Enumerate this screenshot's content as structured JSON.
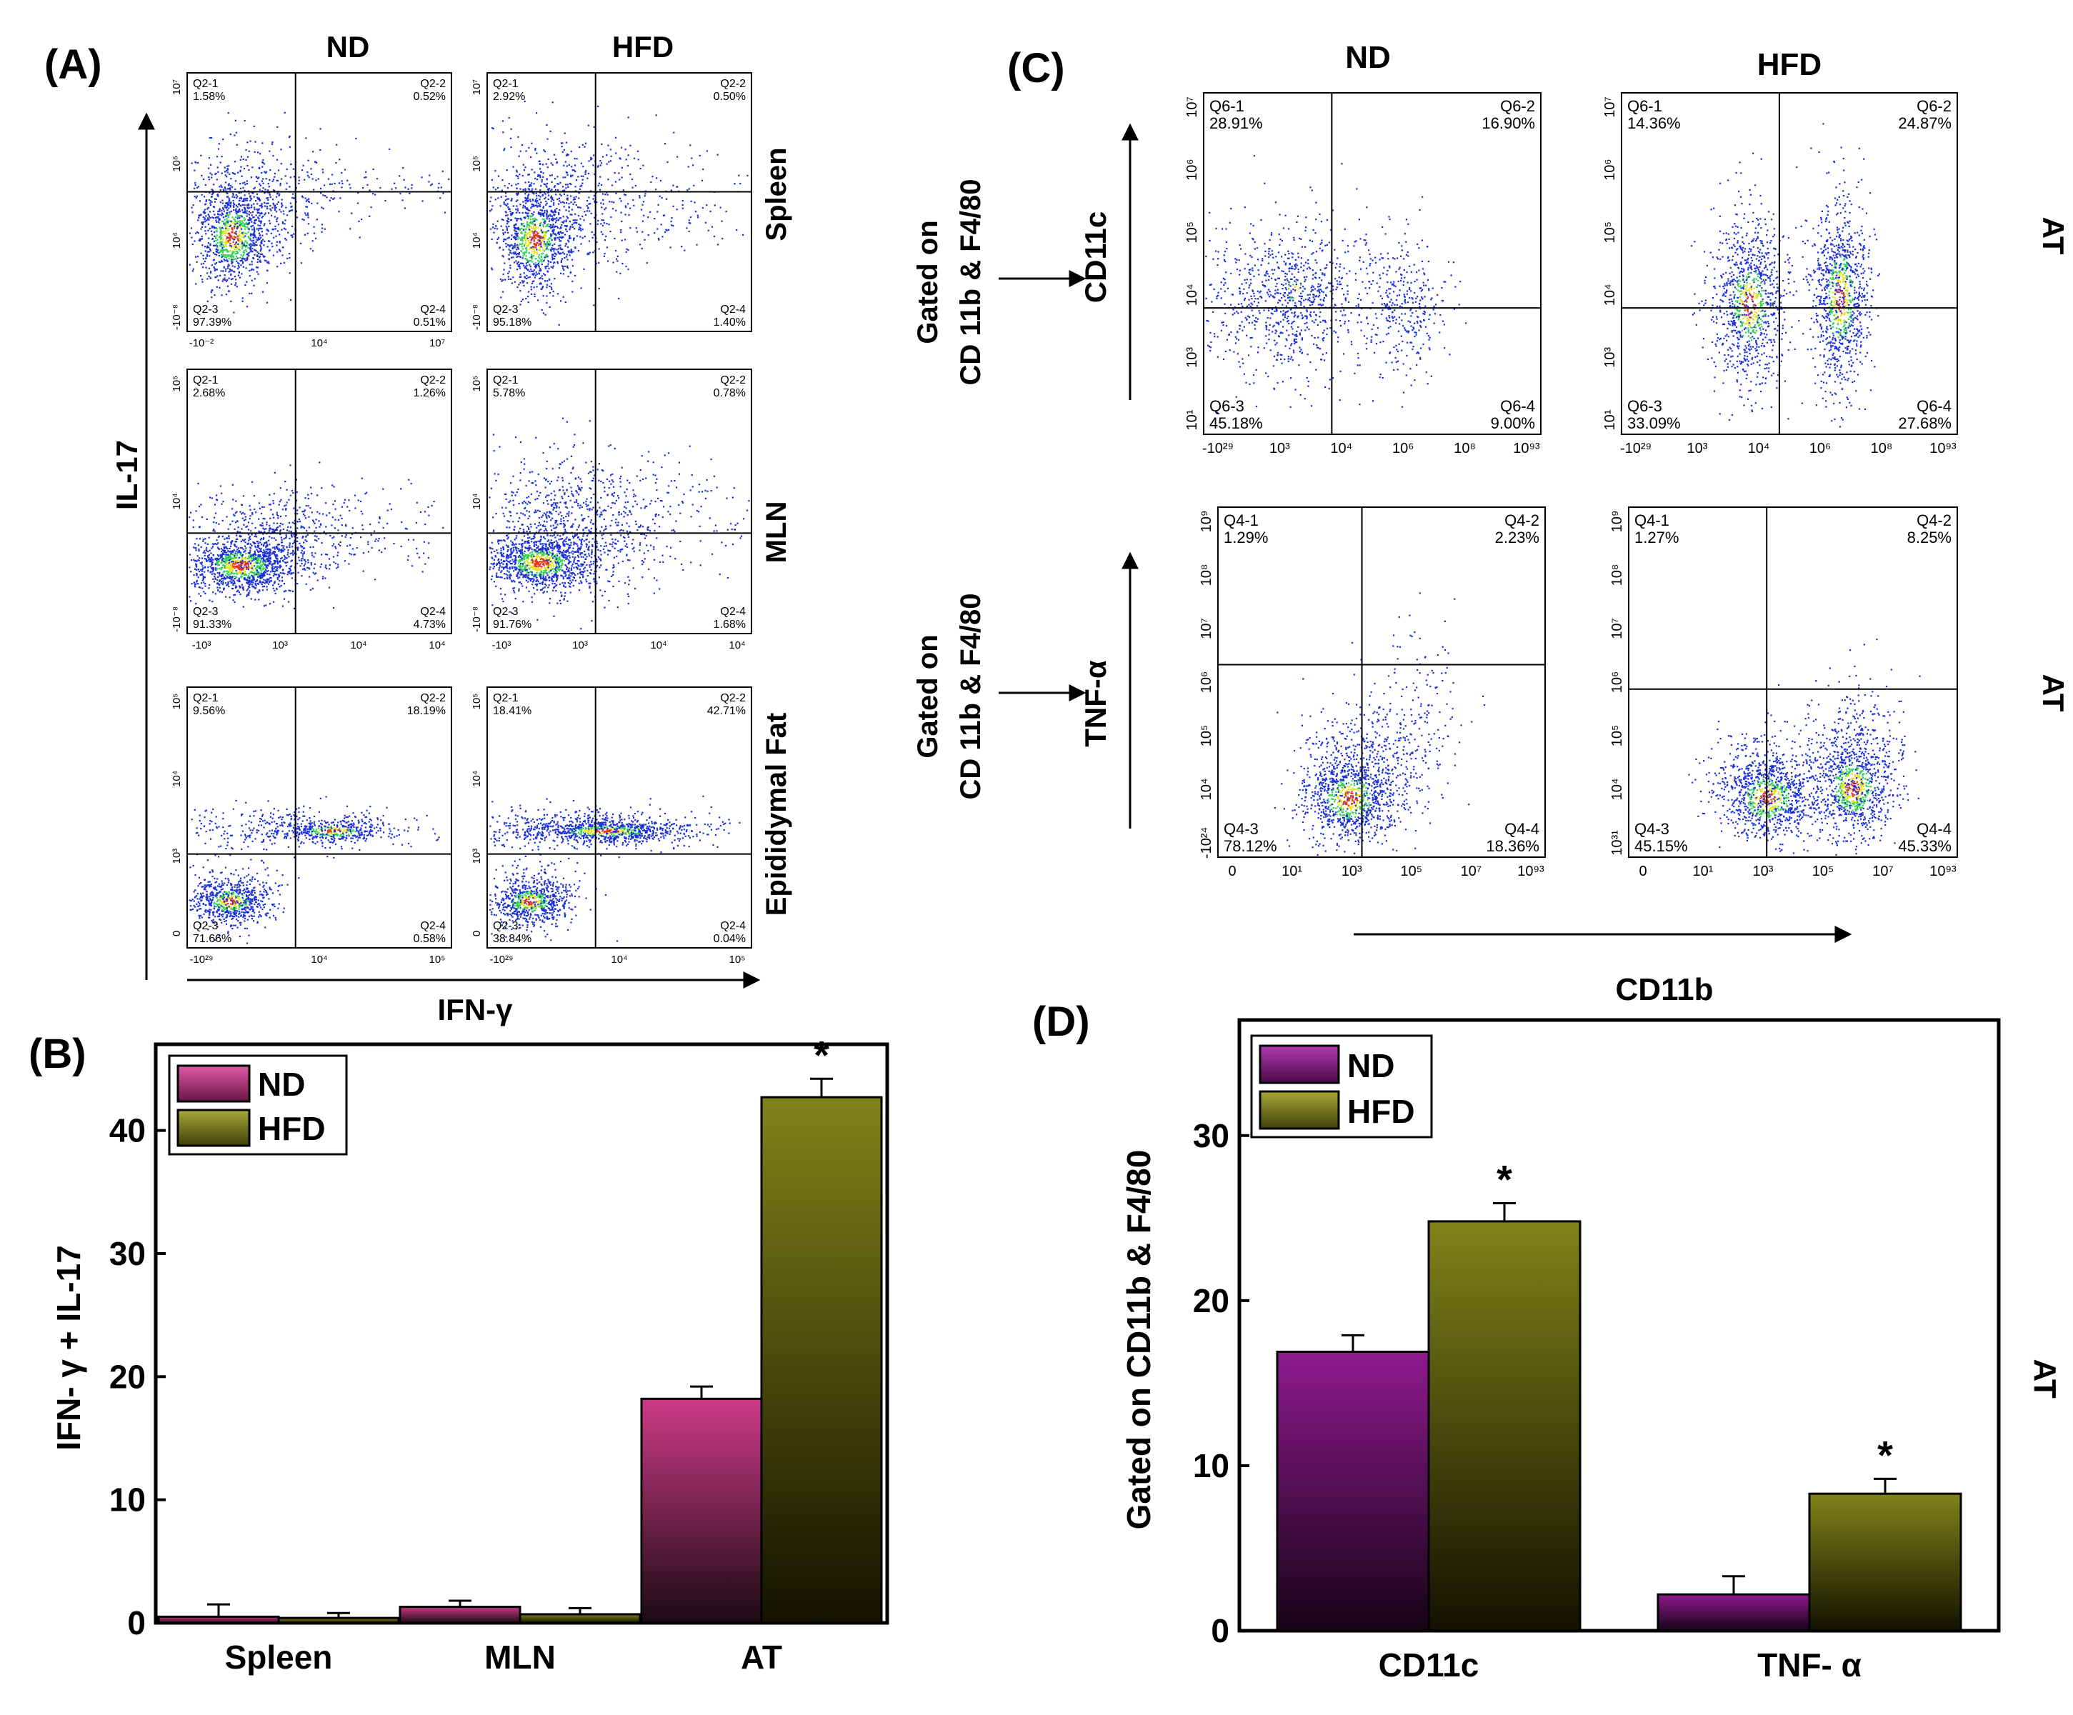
{
  "panels": {
    "A": {
      "label": "(A)",
      "col_labels": [
        "ND",
        "HFD"
      ],
      "row_labels": [
        "Spleen",
        "MLN",
        "Epididymal Fat"
      ],
      "y_axis_label": "IL-17",
      "x_axis_label": "IFN-γ",
      "plots": [
        {
          "quads": [
            [
              "Q2-1",
              "1.58%"
            ],
            [
              "Q2-2",
              "0.52%"
            ],
            [
              "Q2-3",
              "97.39%"
            ],
            [
              "Q2-4",
              "0.51%"
            ]
          ],
          "x_ticks": [
            "-10⁻²",
            "10⁴",
            "10⁷"
          ],
          "y_ticks": [
            "10⁷",
            "10⁵",
            "10⁴",
            "-10⁻⁸"
          ]
        },
        {
          "quads": [
            [
              "Q2-1",
              "2.92%"
            ],
            [
              "Q2-2",
              "0.50%"
            ],
            [
              "Q2-3",
              "95.18%"
            ],
            [
              "Q2-4",
              "1.40%"
            ]
          ],
          "x_ticks": [],
          "y_ticks": [
            "10⁷",
            "10⁵",
            "10⁴",
            "-10⁻⁸"
          ]
        },
        {
          "quads": [
            [
              "Q2-1",
              "2.68%"
            ],
            [
              "Q2-2",
              "1.26%"
            ],
            [
              "Q2-3",
              "91.33%"
            ],
            [
              "Q2-4",
              "4.73%"
            ]
          ],
          "x_ticks": [
            "-10³",
            "10³",
            "10⁴",
            "10⁴"
          ],
          "y_ticks": [
            "10⁵",
            "10⁴",
            "-10⁻⁸"
          ]
        },
        {
          "quads": [
            [
              "Q2-1",
              "5.78%"
            ],
            [
              "Q2-2",
              "0.78%"
            ],
            [
              "Q2-3",
              "91.76%"
            ],
            [
              "Q2-4",
              "1.68%"
            ]
          ],
          "x_ticks": [
            "-10³",
            "10³",
            "10⁴",
            "10⁴"
          ],
          "y_ticks": [
            "10⁵",
            "10⁴",
            "-10⁻⁸"
          ]
        },
        {
          "quads": [
            [
              "Q2-1",
              "9.56%"
            ],
            [
              "Q2-2",
              "18.19%"
            ],
            [
              "Q2-3",
              "71.66%"
            ],
            [
              "Q2-4",
              "0.58%"
            ]
          ],
          "x_ticks": [
            "-10²⁹",
            "10⁴",
            "10⁵"
          ],
          "y_ticks": [
            "10⁵",
            "10⁴",
            "10³",
            "0"
          ]
        },
        {
          "quads": [
            [
              "Q2-1",
              "18.41%"
            ],
            [
              "Q2-2",
              "42.71%"
            ],
            [
              "Q2-3",
              "38.84%"
            ],
            [
              "Q2-4",
              "0.04%"
            ]
          ],
          "x_ticks": [
            "-10²⁹",
            "10⁴",
            "10⁵"
          ],
          "y_ticks": [
            "10⁵",
            "10⁴",
            "10³",
            "0"
          ]
        }
      ]
    },
    "C": {
      "label": "(C)",
      "col_labels": [
        "ND",
        "HFD"
      ],
      "row_labels": [
        "AT",
        "AT"
      ],
      "gated_labels": [
        [
          "Gated on",
          "CD 11b & F4/80"
        ],
        [
          "Gated on",
          "CD 11b & F4/80"
        ]
      ],
      "y_axis_labels": [
        "CD11c",
        "TNF-α"
      ],
      "x_axis_label": "CD11b",
      "plots": [
        {
          "quads": [
            [
              "Q6-1",
              "28.91%"
            ],
            [
              "Q6-2",
              "16.90%"
            ],
            [
              "Q6-3",
              "45.18%"
            ],
            [
              "Q6-4",
              "9.00%"
            ]
          ],
          "x_ticks": [
            "-10²⁹",
            "10³",
            "10⁴",
            "10⁶",
            "10⁸",
            "10⁹³"
          ],
          "y_ticks": [
            "10⁷",
            "10⁶",
            "10⁵",
            "10⁴",
            "10³",
            "10¹"
          ]
        },
        {
          "quads": [
            [
              "Q6-1",
              "14.36%"
            ],
            [
              "Q6-2",
              "24.87%"
            ],
            [
              "Q6-3",
              "33.09%"
            ],
            [
              "Q6-4",
              "27.68%"
            ]
          ],
          "x_ticks": [
            "-10²⁹",
            "10³",
            "10⁴",
            "10⁶",
            "10⁸",
            "10⁹³"
          ],
          "y_ticks": [
            "10⁷",
            "10⁶",
            "10⁵",
            "10⁴",
            "10³",
            "10¹"
          ]
        },
        {
          "quads": [
            [
              "Q4-1",
              "1.29%"
            ],
            [
              "Q4-2",
              "2.23%"
            ],
            [
              "Q4-3",
              "78.12%"
            ],
            [
              "Q4-4",
              "18.36%"
            ]
          ],
          "x_ticks": [
            "0",
            "10¹",
            "10³",
            "10⁵",
            "10⁷",
            "10⁹³"
          ],
          "y_ticks": [
            "10⁹",
            "10⁸",
            "10⁷",
            "10⁶",
            "10⁵",
            "10⁴",
            "-10²⁴"
          ]
        },
        {
          "quads": [
            [
              "Q4-1",
              "1.27%"
            ],
            [
              "Q4-2",
              "8.25%"
            ],
            [
              "Q4-3",
              "45.15%"
            ],
            [
              "Q4-4",
              "45.33%"
            ]
          ],
          "x_ticks": [
            "0",
            "10¹",
            "10³",
            "10⁵",
            "10⁷",
            "10⁹³"
          ],
          "y_ticks": [
            "10⁹",
            "10⁸",
            "10⁷",
            "10⁶",
            "10⁵",
            "10⁴",
            "10³¹"
          ]
        }
      ]
    },
    "B": {
      "label": "(B)",
      "star": "*"
    },
    "D": {
      "label": "(D)",
      "star": "*",
      "side_label": "AT"
    }
  },
  "colors": {
    "nd_B": "#cc3a85",
    "nd_D": "#8e1a8e",
    "hfd": "#7c7c10",
    "dot": "#1a2fd8",
    "core_green": "#2fd150",
    "core_yellow": "#e3e21e",
    "core_red": "#e0341c"
  },
  "chart_data": [
    {
      "type": "bar",
      "title": "",
      "categories": [
        "Spleen",
        "MLN",
        "AT"
      ],
      "series": [
        {
          "name": "ND",
          "values": [
            0.5,
            1.3,
            18.2
          ],
          "errors": [
            1.0,
            0.5,
            1.0
          ]
        },
        {
          "name": "HFD",
          "values": [
            0.4,
            0.7,
            42.7
          ],
          "errors": [
            0.4,
            0.5,
            1.5
          ]
        }
      ],
      "significant": [
        [
          false,
          false
        ],
        [
          false,
          false
        ],
        [
          false,
          true
        ]
      ],
      "xlabel": "",
      "ylabel": "IFN- γ + IL-17",
      "ylim": [
        0,
        47
      ],
      "yticks": [
        0,
        10,
        20,
        30,
        40
      ],
      "legend": [
        "ND",
        "HFD"
      ],
      "legend_position": "top-left"
    },
    {
      "type": "bar",
      "title": "",
      "categories": [
        "CD11c",
        "TNF- α"
      ],
      "series": [
        {
          "name": "ND",
          "values": [
            16.9,
            2.2
          ],
          "errors": [
            1.0,
            1.1
          ]
        },
        {
          "name": "HFD",
          "values": [
            24.8,
            8.3
          ],
          "errors": [
            1.1,
            0.9
          ]
        }
      ],
      "significant": [
        [
          false,
          true
        ],
        [
          false,
          true
        ]
      ],
      "xlabel": "",
      "ylabel": "Gated on CD11b & F4/80",
      "ylim": [
        0,
        37
      ],
      "yticks": [
        0,
        10,
        20,
        30
      ],
      "legend": [
        "ND",
        "HFD"
      ],
      "legend_position": "top-left"
    }
  ]
}
